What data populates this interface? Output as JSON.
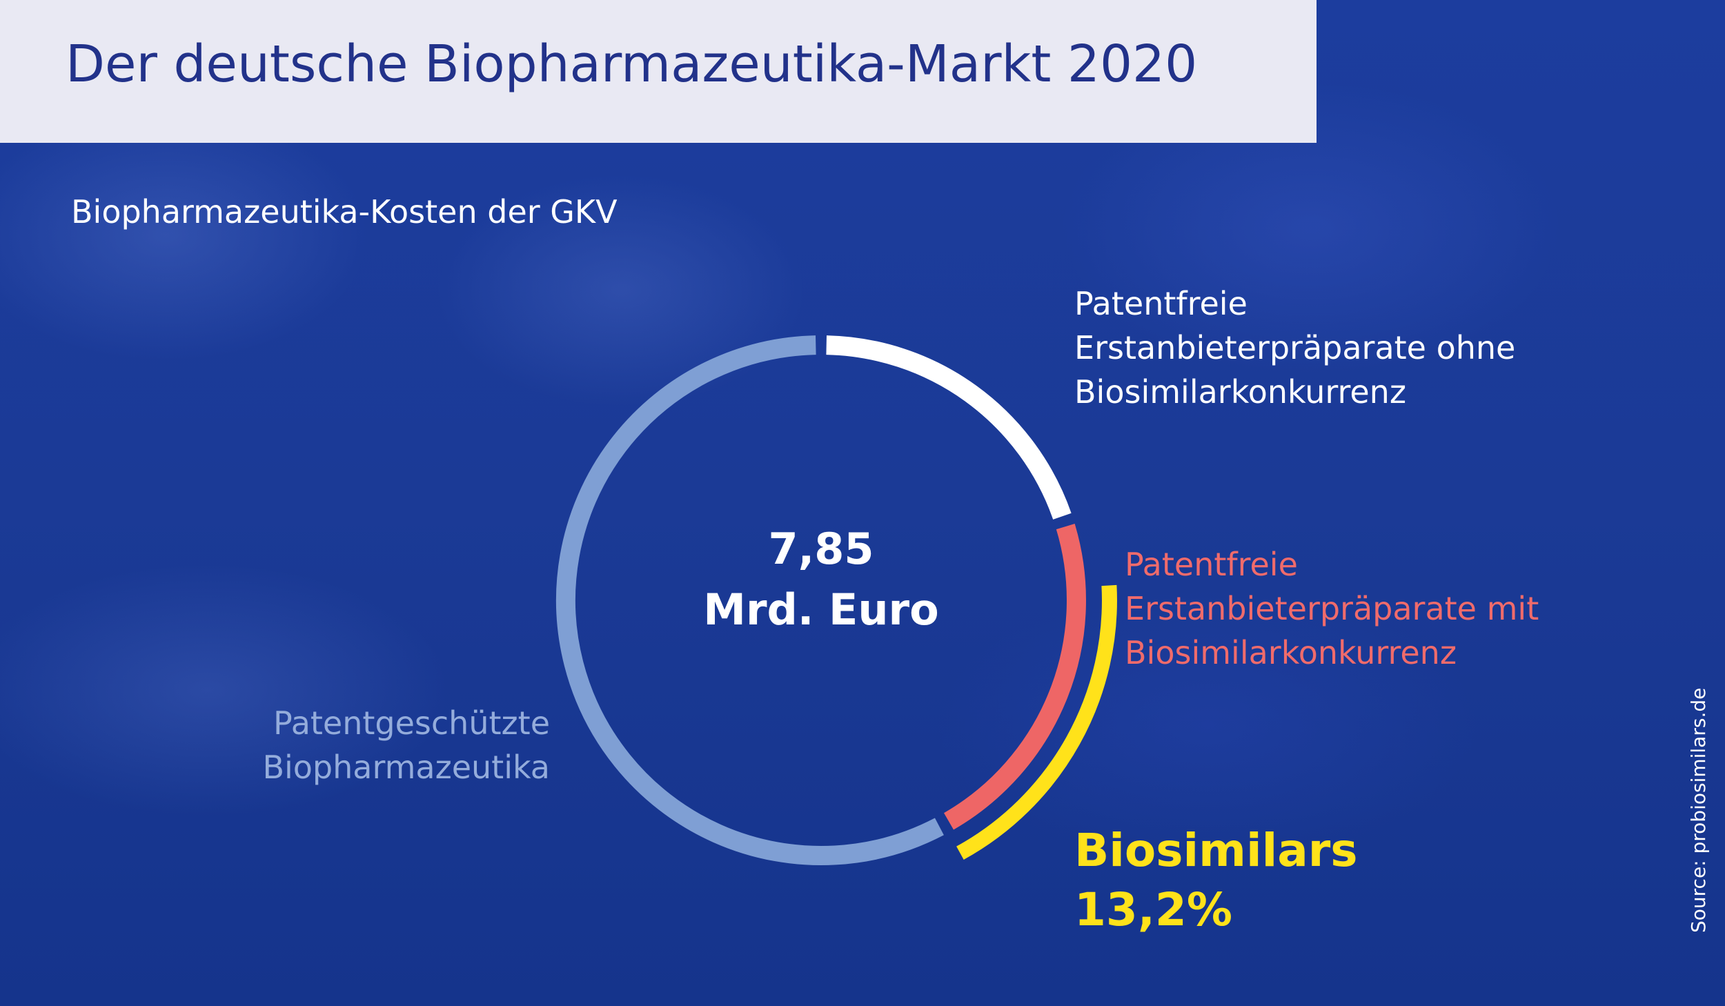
{
  "header": {
    "title": "Der deutsche Biopharmazeutika-Markt 2020"
  },
  "chart_data": {
    "type": "pie",
    "subtitle": "Biopharmazeutika-Kosten der GKV",
    "center": {
      "value": "7,85",
      "unit": "Mrd. Euro"
    },
    "segments": [
      {
        "name": "Patentfreie Erstanbieterpräparate ohne Biosimilarkonkurrenz",
        "lines": [
          "Patentfreie",
          "Erstanbieterpräparate ohne",
          "Biosimilarkonkurrenz"
        ],
        "share": 0.2,
        "color": "#ffffff"
      },
      {
        "name": "Patentfreie Erstanbieterpräparate mit Biosimilarkonkurrenz",
        "lines": [
          "Patentfreie",
          "Erstanbieterpräparate mit",
          "Biosimilarkonkurrenz"
        ],
        "share": 0.22,
        "color": "#ee6666"
      },
      {
        "name": "Patentgeschützte Biopharmazeutika",
        "lines": [
          "Patentgeschützte",
          "Biopharmazeutika"
        ],
        "share": 0.58,
        "color": "#7f9fd4"
      }
    ],
    "highlight": {
      "label": "Biosimilars",
      "value": "13,2%",
      "share": 0.132,
      "color": "#ffe21a"
    }
  },
  "footer": {
    "source": "Source: probiosimilars.de"
  }
}
